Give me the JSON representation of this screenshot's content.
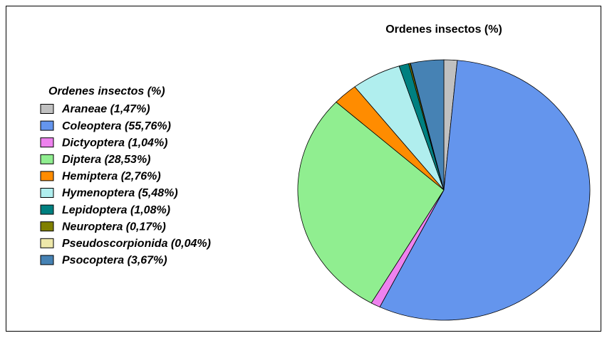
{
  "chart_data": {
    "type": "pie",
    "title": "Ordenes insectos (%)",
    "legend_title": "Ordenes insectos (%)",
    "legend": "left",
    "categories": [
      "Araneae (1,47%)",
      "Coleoptera (55,76%)",
      "Dictyoptera (1,04%)",
      "Diptera (28,53%)",
      "Hemiptera (2,76%)",
      "Hymenoptera (5,48%)",
      "Lepidoptera (1,08%)",
      "Neuroptera (0,17%)",
      "Pseudoscorpionida (0,04%)",
      "Psocoptera (3,67%)"
    ],
    "values": [
      1.47,
      55.76,
      1.04,
      28.53,
      2.76,
      5.48,
      1.08,
      0.17,
      0.04,
      3.67
    ],
    "colors": [
      "#c0c0c0",
      "#6495ed",
      "#ee82ee",
      "#90ee90",
      "#ff8c00",
      "#b0eeee",
      "#008080",
      "#808000",
      "#eee8aa",
      "#4682b4"
    ]
  }
}
